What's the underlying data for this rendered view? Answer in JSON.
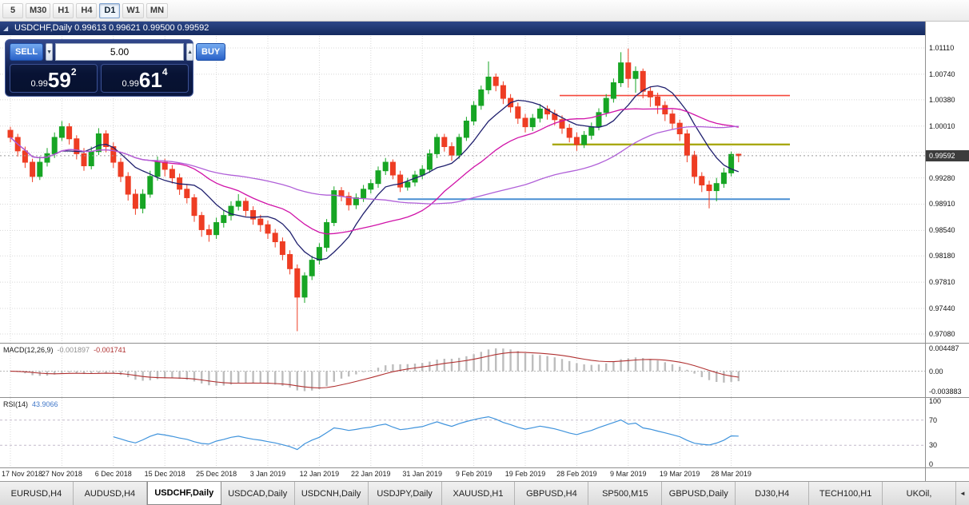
{
  "toolbar": {
    "timeframes": [
      {
        "label": "5",
        "active": false
      },
      {
        "label": "M30",
        "active": false
      },
      {
        "label": "H1",
        "active": false
      },
      {
        "label": "H4",
        "active": false
      },
      {
        "label": "D1",
        "active": true
      },
      {
        "label": "W1",
        "active": false
      },
      {
        "label": "MN",
        "active": false
      }
    ]
  },
  "chart_window": {
    "title": "USDCHF,Daily  0.99613 0.99621 0.99500 0.99592",
    "collapse_icon": "◢",
    "trade_panel": {
      "sell_label": "SELL",
      "buy_label": "BUY",
      "volume": "5.00",
      "spin_up": "▲",
      "spin_down": "▼",
      "sell_price": {
        "small": "0.99",
        "big": "59",
        "sup": "2"
      },
      "buy_price": {
        "small": "0.99",
        "big": "61",
        "sup": "4"
      }
    }
  },
  "chart_data": {
    "type": "candlestick",
    "symbol": "USDCHF",
    "timeframe": "Daily",
    "ohlc_display": {
      "open": "0.99613",
      "high": "0.99621",
      "low": "0.99500",
      "close": "0.99592"
    },
    "current_price": "0.99592",
    "y_range": [
      0.96979,
      1.01279
    ],
    "y_ticks": [
      "1.01110",
      "1.00740",
      "1.00380",
      "1.00010",
      "0.99640",
      "0.99280",
      "0.98910",
      "0.98540",
      "0.98180",
      "0.97810",
      "0.97440",
      "0.97080"
    ],
    "x_labels": [
      "17 Nov 2018",
      "27 Nov 2018",
      "6 Dec 2018",
      "15 Dec 2018",
      "25 Dec 2018",
      "3 Jan 2019",
      "12 Jan 2019",
      "22 Jan 2019",
      "31 Jan 2019",
      "9 Feb 2019",
      "19 Feb 2019",
      "28 Feb 2019",
      "9 Mar 2019",
      "19 Mar 2019",
      "28 Mar 2019"
    ],
    "x_label_step": 7,
    "candles": [
      [
        0.9995,
        1.0,
        0.9978,
        0.9985
      ],
      [
        0.9985,
        0.999,
        0.9958,
        0.9966
      ],
      [
        0.9966,
        0.9972,
        0.9942,
        0.995
      ],
      [
        0.995,
        0.9955,
        0.9922,
        0.993
      ],
      [
        0.993,
        0.9958,
        0.9925,
        0.995
      ],
      [
        0.995,
        0.997,
        0.9944,
        0.9962
      ],
      [
        0.9962,
        0.9992,
        0.9956,
        0.9985
      ],
      [
        0.9985,
        1.0008,
        0.998,
        1.0
      ],
      [
        1.0,
        1.0005,
        0.9975,
        0.9983
      ],
      [
        0.9983,
        0.9988,
        0.9954,
        0.9962
      ],
      [
        0.9962,
        0.997,
        0.9938,
        0.9945
      ],
      [
        0.9945,
        0.9972,
        0.994,
        0.9965
      ],
      [
        0.9965,
        0.9998,
        0.996,
        0.999
      ],
      [
        0.999,
        0.9995,
        0.9964,
        0.9972
      ],
      [
        0.9972,
        0.9978,
        0.9942,
        0.995
      ],
      [
        0.995,
        0.9956,
        0.9922,
        0.993
      ],
      [
        0.993,
        0.9936,
        0.9896,
        0.9905
      ],
      [
        0.9905,
        0.9912,
        0.9876,
        0.9885
      ],
      [
        0.9885,
        0.9912,
        0.9878,
        0.9905
      ],
      [
        0.9905,
        0.9938,
        0.99,
        0.993
      ],
      [
        0.993,
        0.9958,
        0.9924,
        0.995
      ],
      [
        0.995,
        0.9955,
        0.993,
        0.994
      ],
      [
        0.994,
        0.9946,
        0.992,
        0.9928
      ],
      [
        0.9928,
        0.9934,
        0.9904,
        0.9912
      ],
      [
        0.9912,
        0.9918,
        0.9892,
        0.99
      ],
      [
        0.99,
        0.9905,
        0.9866,
        0.9875
      ],
      [
        0.9875,
        0.988,
        0.9845,
        0.9855
      ],
      [
        0.9855,
        0.9862,
        0.9838,
        0.9848
      ],
      [
        0.9848,
        0.9872,
        0.9842,
        0.9865
      ],
      [
        0.9865,
        0.9882,
        0.9858,
        0.9875
      ],
      [
        0.9875,
        0.9895,
        0.9868,
        0.9888
      ],
      [
        0.9888,
        0.9905,
        0.9882,
        0.9895
      ],
      [
        0.9895,
        0.99,
        0.9874,
        0.9882
      ],
      [
        0.9882,
        0.9888,
        0.9862,
        0.987
      ],
      [
        0.987,
        0.9876,
        0.9852,
        0.9862
      ],
      [
        0.9862,
        0.9868,
        0.9842,
        0.985
      ],
      [
        0.985,
        0.9856,
        0.983,
        0.9838
      ],
      [
        0.9838,
        0.9844,
        0.9812,
        0.982
      ],
      [
        0.982,
        0.9826,
        0.9792,
        0.98
      ],
      [
        0.98,
        0.9806,
        0.9712,
        0.976
      ],
      [
        0.976,
        0.9795,
        0.9752,
        0.979
      ],
      [
        0.979,
        0.9818,
        0.9784,
        0.9812
      ],
      [
        0.9812,
        0.9836,
        0.9806,
        0.983
      ],
      [
        0.983,
        0.987,
        0.9824,
        0.9865
      ],
      [
        0.9865,
        0.9916,
        0.986,
        0.991
      ],
      [
        0.991,
        0.9915,
        0.9895,
        0.9902
      ],
      [
        0.9902,
        0.9908,
        0.9882,
        0.989
      ],
      [
        0.989,
        0.9906,
        0.9884,
        0.99
      ],
      [
        0.99,
        0.9918,
        0.9894,
        0.9912
      ],
      [
        0.9912,
        0.9926,
        0.9906,
        0.992
      ],
      [
        0.992,
        0.9944,
        0.9914,
        0.9938
      ],
      [
        0.9938,
        0.9956,
        0.9932,
        0.995
      ],
      [
        0.995,
        0.9954,
        0.9926,
        0.9932
      ],
      [
        0.9932,
        0.9938,
        0.9908,
        0.9915
      ],
      [
        0.9915,
        0.9928,
        0.991,
        0.9922
      ],
      [
        0.9922,
        0.9938,
        0.9916,
        0.9932
      ],
      [
        0.9932,
        0.9946,
        0.9926,
        0.994
      ],
      [
        0.994,
        0.9968,
        0.9935,
        0.9962
      ],
      [
        0.9962,
        0.999,
        0.9956,
        0.9985
      ],
      [
        0.9985,
        0.999,
        0.9965,
        0.9972
      ],
      [
        0.9972,
        0.9978,
        0.9952,
        0.996
      ],
      [
        0.996,
        0.999,
        0.9955,
        0.9985
      ],
      [
        0.9985,
        1.0014,
        0.998,
        1.0008
      ],
      [
        1.0008,
        1.0036,
        1.0002,
        1.003
      ],
      [
        1.003,
        1.0058,
        1.0024,
        1.0052
      ],
      [
        1.0052,
        1.0092,
        1.0046,
        1.007
      ],
      [
        1.007,
        1.0075,
        1.005,
        1.0058
      ],
      [
        1.0058,
        1.0064,
        1.0032,
        1.004
      ],
      [
        1.004,
        1.0046,
        1.002,
        1.0028
      ],
      [
        1.0028,
        1.0034,
        1.0004,
        1.0012
      ],
      [
        1.0012,
        1.0018,
        0.9992,
        1.0
      ],
      [
        1.0,
        1.0018,
        0.9994,
        1.0012
      ],
      [
        1.0012,
        1.0032,
        1.0006,
        1.0025
      ],
      [
        1.0025,
        1.003,
        1.001,
        1.0018
      ],
      [
        1.0018,
        1.0024,
        1.0002,
        1.001
      ],
      [
        1.001,
        1.0016,
        0.999,
        0.9998
      ],
      [
        0.9998,
        1.0004,
        0.9978,
        0.9985
      ],
      [
        0.9985,
        0.9992,
        0.9966,
        0.9975
      ],
      [
        0.9975,
        0.9994,
        0.997,
        0.9988
      ],
      [
        0.9988,
        1.0006,
        0.9982,
        1.0
      ],
      [
        1.0,
        1.0026,
        0.9995,
        1.002
      ],
      [
        1.002,
        1.0046,
        1.0014,
        1.004
      ],
      [
        1.004,
        1.0068,
        1.0034,
        1.0062
      ],
      [
        1.0062,
        1.0105,
        1.0056,
        1.009
      ],
      [
        1.009,
        1.011,
        1.0055,
        1.0068
      ],
      [
        1.0068,
        1.0085,
        1.0048,
        1.0078
      ],
      [
        1.0078,
        1.0082,
        1.004,
        1.005
      ],
      [
        1.005,
        1.0056,
        1.0028,
        1.0042
      ],
      [
        1.0042,
        1.0048,
        1.0018,
        1.003
      ],
      [
        1.003,
        1.0036,
        1.0008,
        1.0018
      ],
      [
        1.0018,
        1.0024,
        0.9996,
        1.0005
      ],
      [
        1.0005,
        1.001,
        0.998,
        0.999
      ],
      [
        0.999,
        0.9996,
        0.995,
        0.996
      ],
      [
        0.996,
        0.9966,
        0.992,
        0.993
      ],
      [
        0.993,
        0.9936,
        0.9908,
        0.9918
      ],
      [
        0.9918,
        0.9924,
        0.9885,
        0.991
      ],
      [
        0.991,
        0.9928,
        0.9895,
        0.992
      ],
      [
        0.992,
        0.9942,
        0.9914,
        0.9935
      ],
      [
        0.9935,
        0.9965,
        0.993,
        0.9961
      ],
      [
        0.99613,
        0.99621,
        0.995,
        0.99592
      ]
    ],
    "colors": {
      "bull": "#17a524",
      "bear": "#ee3d23",
      "grid": "#d8d8d8",
      "price_tag_bg": "#3c3c3c",
      "current_line": "#9a9a9a"
    },
    "moving_averages": [
      {
        "period": 8,
        "color": "#20206e"
      },
      {
        "period": 20,
        "color": "#d012a8"
      },
      {
        "period": 45,
        "color": "#b060d8"
      }
    ],
    "hlines": [
      {
        "price": 1.0044,
        "color": "#f5483c",
        "width": 1.6,
        "from_index": 75
      },
      {
        "price": 0.9975,
        "color": "#a8a810",
        "width": 2.4,
        "from_index": 74
      },
      {
        "price": 0.9898,
        "color": "#4a8fd3",
        "width": 2.0,
        "from_index": 53
      }
    ],
    "indicators": [
      {
        "name": "MACD",
        "label": "MACD(12,26,9)",
        "value1": "-0.001897",
        "value2": "-0.001741",
        "fast": 12,
        "slow": 26,
        "signal": 9,
        "range": [
          -0.003883,
          0.004487
        ],
        "scale_ticks": [
          "0.004487",
          "0.00",
          "-0.003883"
        ],
        "histogram_color": "#bdbdbd",
        "signal_color": "#b03030"
      },
      {
        "name": "RSI",
        "label": "RSI(14)",
        "value": "43.9066",
        "period": 14,
        "levels": [
          70,
          30
        ],
        "range": [
          0,
          100
        ],
        "scale_ticks": [
          "100",
          "70",
          "30",
          "0"
        ],
        "line_color": "#3f93dc",
        "level_color": "#c4bacc"
      }
    ]
  },
  "tabs": {
    "scroll_left_icon": "◄",
    "items": [
      {
        "label": "EURUSD,H4",
        "active": false
      },
      {
        "label": "AUDUSD,H4",
        "active": false
      },
      {
        "label": "USDCHF,Daily",
        "active": true
      },
      {
        "label": "USDCAD,Daily",
        "active": false
      },
      {
        "label": "USDCNH,Daily",
        "active": false
      },
      {
        "label": "USDJPY,Daily",
        "active": false
      },
      {
        "label": "XAUUSD,H1",
        "active": false
      },
      {
        "label": "GBPUSD,H4",
        "active": false
      },
      {
        "label": "SP500,M15",
        "active": false
      },
      {
        "label": "GBPUSD,Daily",
        "active": false
      },
      {
        "label": "DJ30,H4",
        "active": false
      },
      {
        "label": "TECH100,H1",
        "active": false
      },
      {
        "label": "UKOil,",
        "active": false
      }
    ]
  }
}
